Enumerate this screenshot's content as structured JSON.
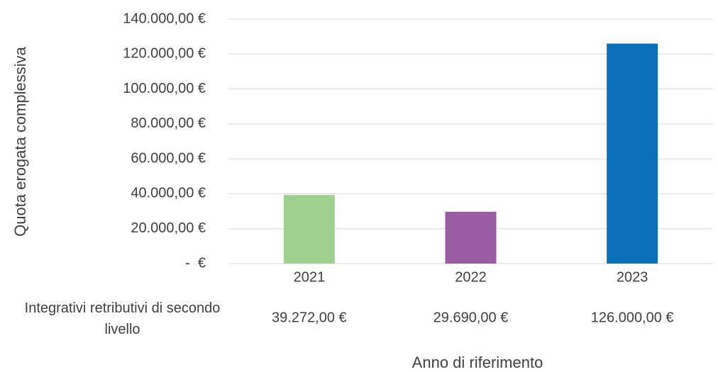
{
  "chart_data": {
    "type": "bar",
    "y_label": "Quota erogata complessiva",
    "x_label": "Anno di riferimento",
    "categories": [
      "2021",
      "2022",
      "2023"
    ],
    "series": [
      {
        "name": "Integrativi retributivi di secondo livello",
        "values": [
          39272,
          29690,
          126000
        ],
        "value_labels": [
          "39.272,00 €",
          "29.690,00 €",
          "126.000,00 €"
        ],
        "colors": [
          "#9fd08f",
          "#9b5ba5",
          "#0a70b9"
        ]
      }
    ],
    "ylim": [
      0,
      140000
    ],
    "yticks": [
      {
        "value": 0,
        "label": "-  €"
      },
      {
        "value": 20000,
        "label": "20.000,00 €"
      },
      {
        "value": 40000,
        "label": "40.000,00 €"
      },
      {
        "value": 60000,
        "label": "60.000,00 €"
      },
      {
        "value": 80000,
        "label": "80.000,00 €"
      },
      {
        "value": 100000,
        "label": "100.000,00 €"
      },
      {
        "value": 120000,
        "label": "120.000,00 €"
      },
      {
        "value": 140000,
        "label": "140.000,00 €"
      }
    ],
    "grid": true
  }
}
